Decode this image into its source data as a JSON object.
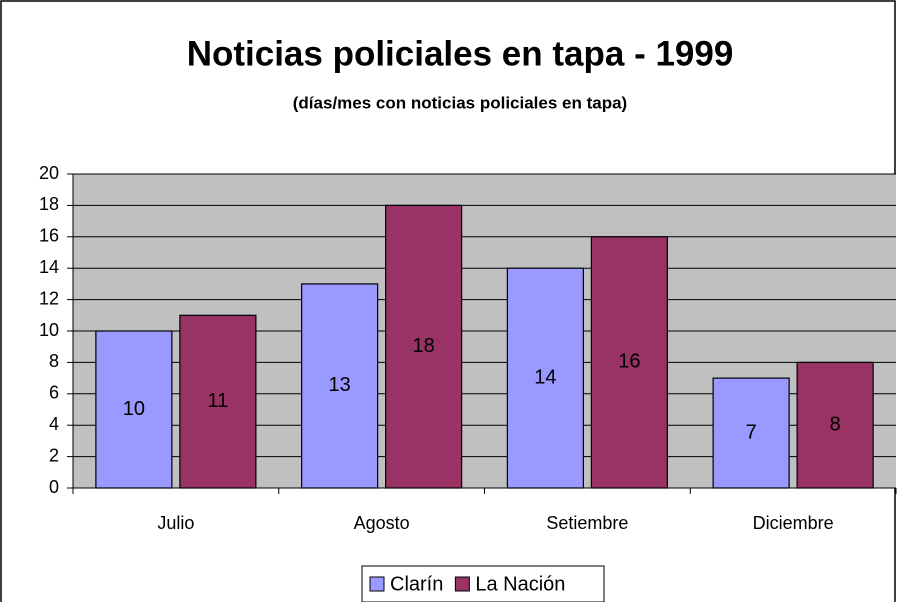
{
  "chart_data": {
    "type": "bar",
    "title": "Noticias policiales en tapa - 1999",
    "subtitle": "(días/mes con noticias policiales en tapa)",
    "categories": [
      "Julio",
      "Agosto",
      "Setiembre",
      "Diciembre"
    ],
    "series": [
      {
        "name": "Clarín",
        "color": "#9999ff",
        "values": [
          10,
          13,
          14,
          7
        ]
      },
      {
        "name": "La Nación",
        "color": "#993366",
        "values": [
          11,
          18,
          16,
          8
        ]
      }
    ],
    "ylim": [
      0,
      20
    ],
    "yticks": [
      0,
      2,
      4,
      6,
      8,
      10,
      12,
      14,
      16,
      18,
      20
    ],
    "grid": true,
    "legend": "bottom"
  }
}
